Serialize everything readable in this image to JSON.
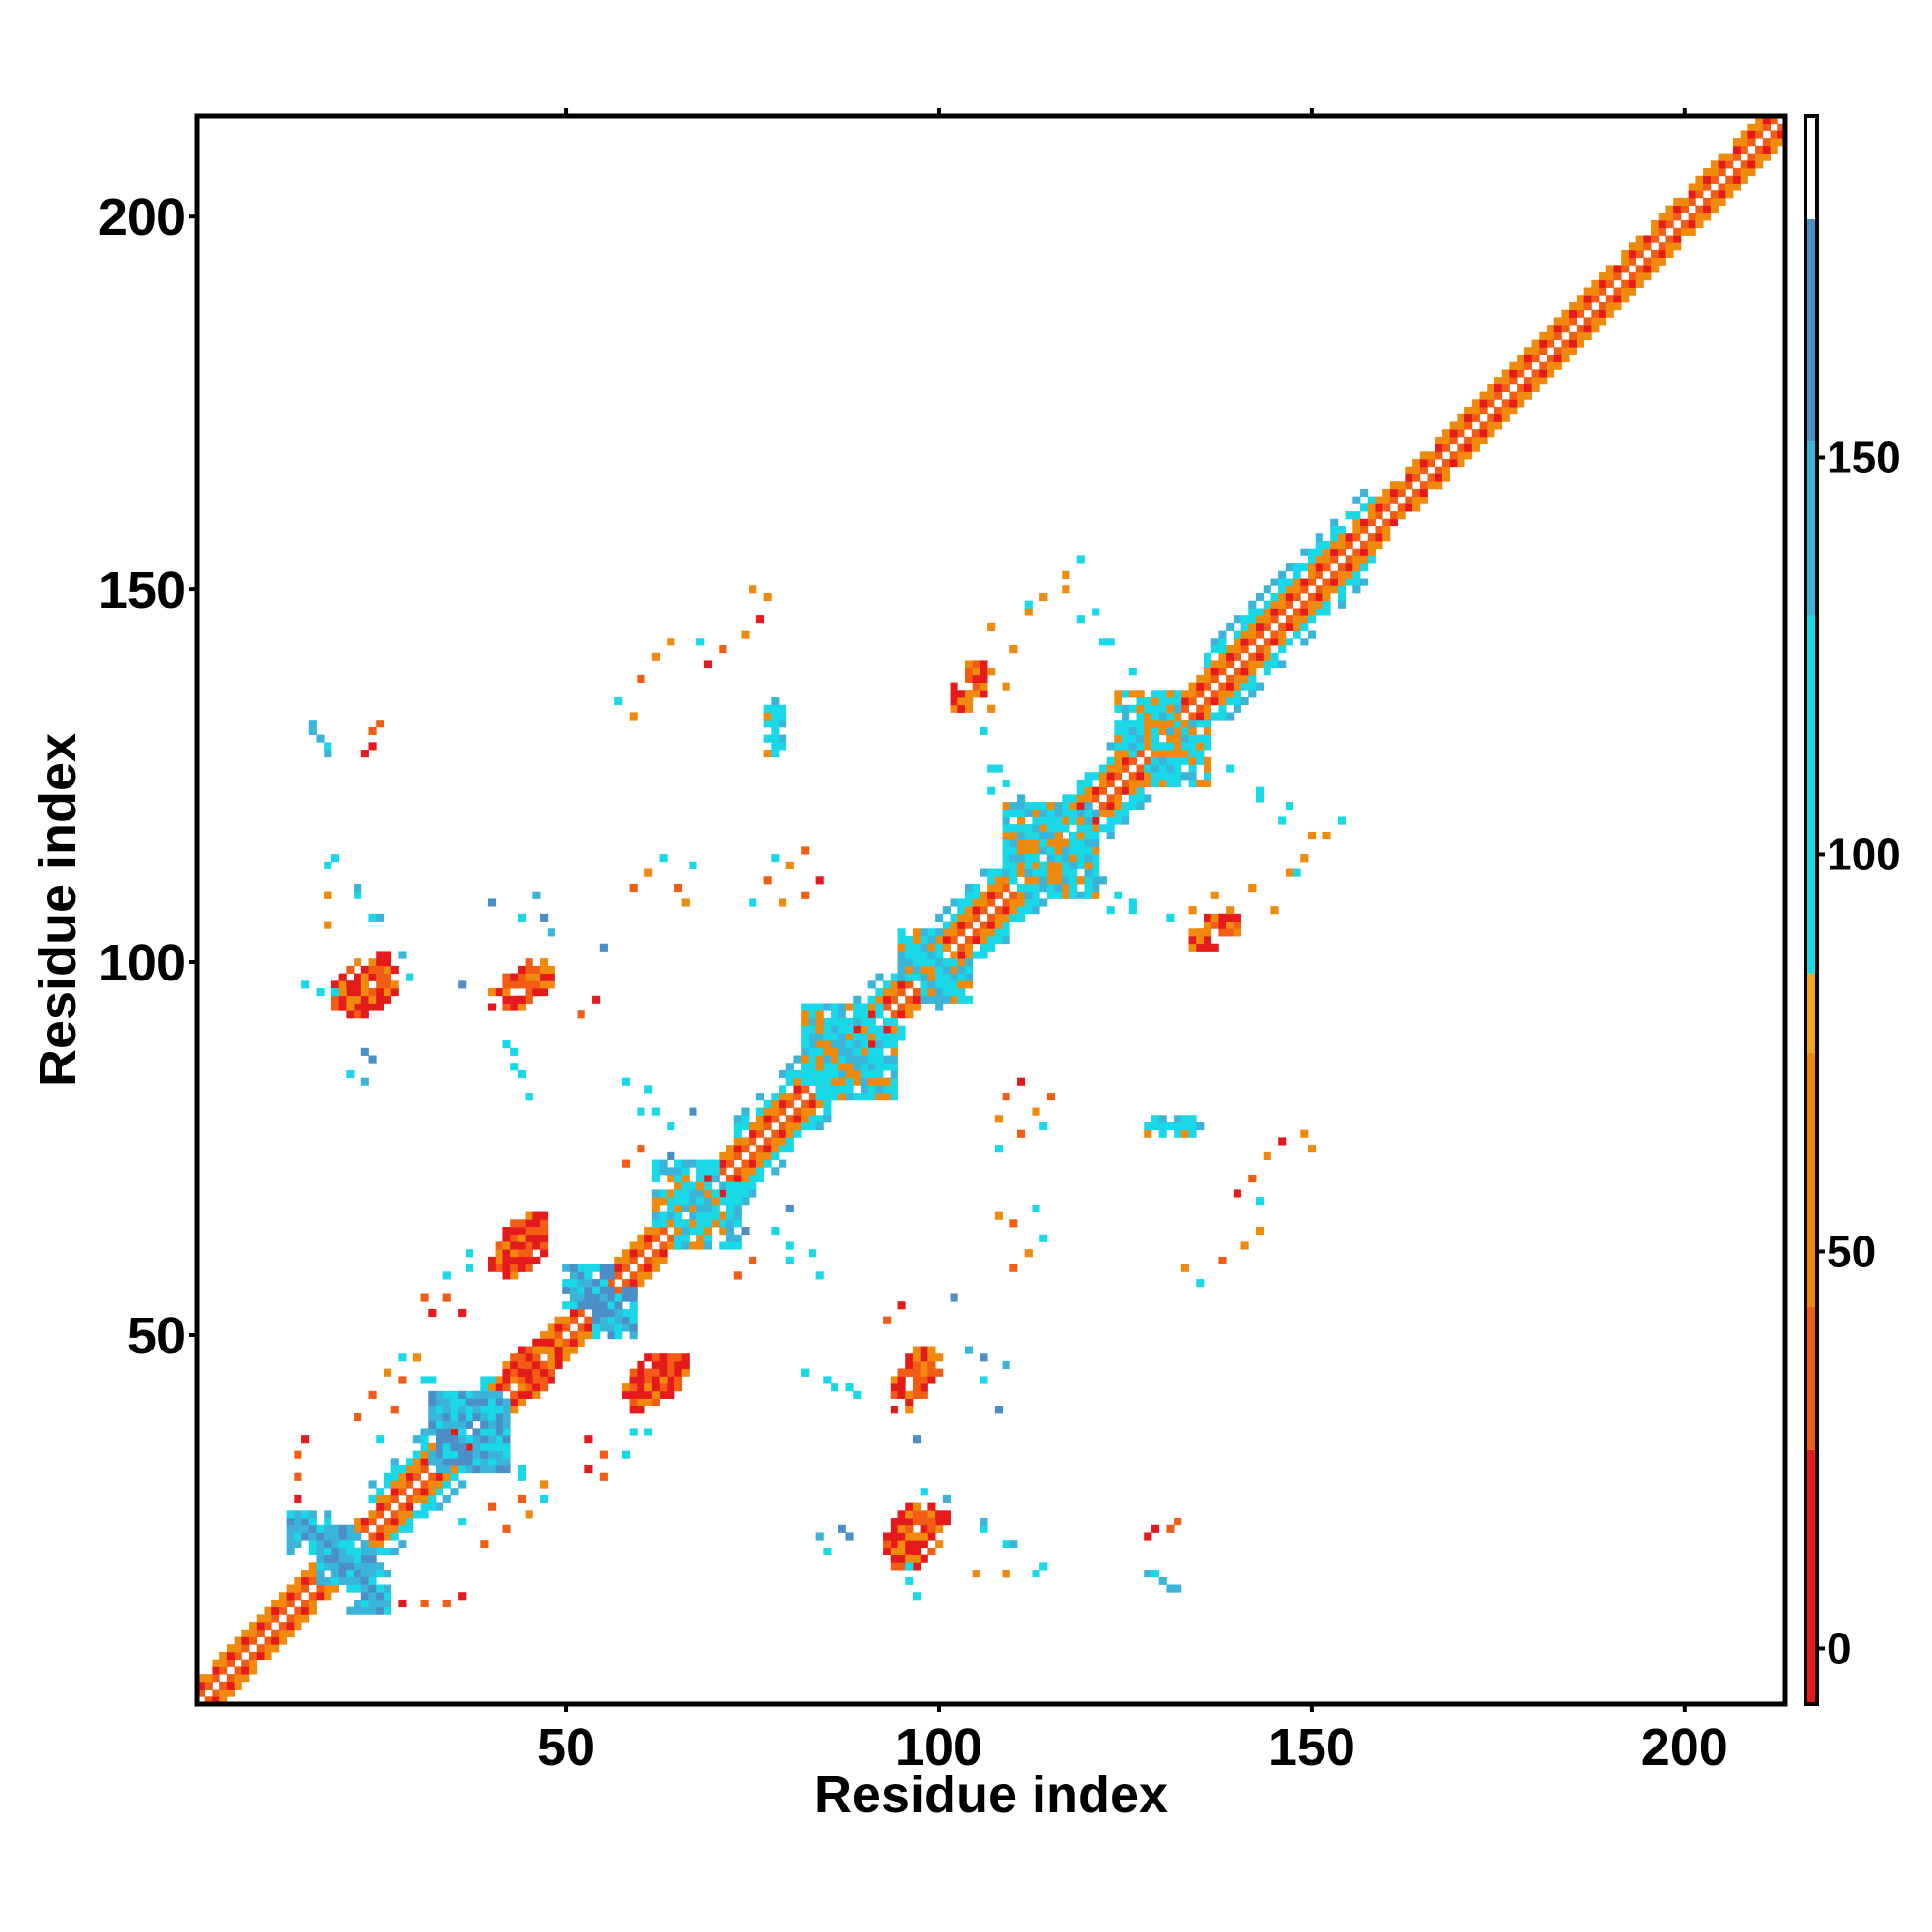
{
  "chart_data": {
    "type": "heatmap",
    "title": "",
    "xlabel": "Residue index",
    "ylabel": "Residue index",
    "xlim": [
      1,
      213
    ],
    "ylim": [
      1,
      213
    ],
    "x_ticks": [
      50,
      100,
      150,
      200
    ],
    "y_ticks": [
      50,
      100,
      150,
      200
    ],
    "x_tick_labels": [
      "50",
      "100",
      "150",
      "200"
    ],
    "y_tick_labels": [
      "50",
      "100",
      "150",
      "200"
    ],
    "grid": false,
    "legend": "none",
    "colorbar": {
      "ticks": [
        0,
        50,
        100,
        150
      ],
      "tick_labels": [
        "0",
        "50",
        "100",
        "150"
      ],
      "range": [
        -7,
        193
      ],
      "bands": [
        {
          "from": -7,
          "to": 25,
          "color": "#E41A1C"
        },
        {
          "from": 25,
          "to": 43,
          "color": "#F25C14"
        },
        {
          "from": 43,
          "to": 75,
          "color": "#F08A0C"
        },
        {
          "from": 75,
          "to": 85,
          "color": "#F5A623"
        },
        {
          "from": 85,
          "to": 130,
          "color": "#19D8E8"
        },
        {
          "from": 130,
          "to": 152,
          "color": "#3BB4DA"
        },
        {
          "from": 152,
          "to": 180,
          "color": "#4C8FC8"
        },
        {
          "from": 180,
          "to": 193,
          "color": "#FFFFFF"
        }
      ]
    },
    "colors": {
      "red": "#E41A1C",
      "orange_red": "#F25C14",
      "orange": "#F08A0C",
      "cyan": "#19D8E8",
      "sky": "#3BB4DA",
      "steel": "#4C8FC8"
    },
    "diagonal_band": {
      "from": 1,
      "to": 213,
      "color_sequence": [
        "orange",
        "orange_red",
        "red",
        "orange"
      ]
    },
    "helix_segments": [
      {
        "start": 24,
        "end": 40,
        "color": "cyan"
      },
      {
        "start": 72,
        "end": 95,
        "color": "cyan"
      },
      {
        "start": 100,
        "end": 132,
        "color": "cyan"
      },
      {
        "start": 136,
        "end": 158,
        "color": "cyan"
      },
      {
        "start": 159,
        "end": 213,
        "color": "orange"
      }
    ],
    "contact_patches": [
      {
        "x": [
          19,
          26
        ],
        "y": [
          94,
          101
        ],
        "color": "red"
      },
      {
        "x": [
          42,
          48
        ],
        "y": [
          94,
          100
        ],
        "color": "red"
      },
      {
        "x": [
          41,
          47
        ],
        "y": [
          59,
          66
        ],
        "color": "red"
      },
      {
        "x": [
          58,
          64
        ],
        "y": [
          40,
          47
        ],
        "color": "red"
      },
      {
        "x": [
          94,
          99
        ],
        "y": [
          40,
          47
        ],
        "color": "red"
      },
      {
        "x": [
          93,
          99
        ],
        "y": [
          20,
          27
        ],
        "color": "red"
      },
      {
        "x": [
          42,
          49
        ],
        "y": [
          44,
          49
        ],
        "color": "red"
      },
      {
        "x": [
          103,
          106
        ],
        "y": [
          134,
          138
        ],
        "color": "red"
      },
      {
        "x": [
          134,
          140
        ],
        "y": [
          102,
          106
        ],
        "color": "red"
      },
      {
        "x": [
          17,
          22
        ],
        "y": [
          17,
          24
        ],
        "color": "sky"
      },
      {
        "x": [
          21,
          26
        ],
        "y": [
          13,
          18
        ],
        "color": "sky"
      },
      {
        "x": [
          50,
          56
        ],
        "y": [
          54,
          59
        ],
        "color": "steel"
      },
      {
        "x": [
          95,
          101
        ],
        "y": [
          98,
          104
        ],
        "color": "cyan"
      },
      {
        "x": [
          109,
          120
        ],
        "y": [
          110,
          121
        ],
        "color": "cyan"
      },
      {
        "x": [
          124,
          132
        ],
        "y": [
          128,
          136
        ],
        "color": "cyan"
      },
      {
        "x": [
          32,
          41
        ],
        "y": [
          33,
          42
        ],
        "color": "sky"
      },
      {
        "x": [
          62,
          70
        ],
        "y": [
          65,
          73
        ],
        "color": "cyan"
      },
      {
        "x": [
          82,
          92
        ],
        "y": [
          84,
          94
        ],
        "color": "cyan"
      },
      {
        "x": [
          128,
          135
        ],
        "y": [
          77,
          79
        ],
        "color": "cyan"
      }
    ],
    "scattered_contacts": [
      {
        "x": 16,
        "y": 131,
        "color": "sky"
      },
      {
        "x": 17,
        "y": 130,
        "color": "sky"
      },
      {
        "x": 18,
        "y": 128,
        "color": "sky"
      },
      {
        "x": 24,
        "y": 131,
        "color": "orange_red"
      },
      {
        "x": 23,
        "y": 128,
        "color": "red"
      },
      {
        "x": 18,
        "y": 113,
        "color": "cyan"
      },
      {
        "x": 18,
        "y": 109,
        "color": "orange"
      },
      {
        "x": 22,
        "y": 109,
        "color": "cyan"
      },
      {
        "x": 24,
        "y": 106,
        "color": "cyan"
      },
      {
        "x": 24,
        "y": 87,
        "color": "steel"
      },
      {
        "x": 21,
        "y": 85,
        "color": "cyan"
      },
      {
        "x": 15,
        "y": 97,
        "color": "cyan"
      },
      {
        "x": 17,
        "y": 96,
        "color": "cyan"
      },
      {
        "x": 29,
        "y": 98,
        "color": "cyan"
      },
      {
        "x": 36,
        "y": 97,
        "color": "steel"
      },
      {
        "x": 40,
        "y": 108,
        "color": "steel"
      },
      {
        "x": 44,
        "y": 106,
        "color": "cyan"
      },
      {
        "x": 42,
        "y": 89,
        "color": "cyan"
      },
      {
        "x": 43,
        "y": 86,
        "color": "cyan"
      },
      {
        "x": 45,
        "y": 82,
        "color": "cyan"
      },
      {
        "x": 57,
        "y": 135,
        "color": "cyan"
      },
      {
        "x": 59,
        "y": 133,
        "color": "orange"
      },
      {
        "x": 60,
        "y": 138,
        "color": "orange_red"
      },
      {
        "x": 62,
        "y": 141,
        "color": "orange"
      },
      {
        "x": 64,
        "y": 143,
        "color": "orange"
      },
      {
        "x": 59,
        "y": 110,
        "color": "orange_red"
      },
      {
        "x": 61,
        "y": 112,
        "color": "orange"
      },
      {
        "x": 63,
        "y": 114,
        "color": "cyan"
      },
      {
        "x": 65,
        "y": 110,
        "color": "orange_red"
      },
      {
        "x": 67,
        "y": 113,
        "color": "cyan"
      },
      {
        "x": 66,
        "y": 108,
        "color": "orange"
      },
      {
        "x": 52,
        "y": 93,
        "color": "orange_red"
      },
      {
        "x": 54,
        "y": 95,
        "color": "red"
      },
      {
        "x": 55,
        "y": 102,
        "color": "steel"
      },
      {
        "x": 58,
        "y": 84,
        "color": "cyan"
      },
      {
        "x": 60,
        "y": 80,
        "color": "cyan"
      },
      {
        "x": 64,
        "y": 74,
        "color": "steel"
      },
      {
        "x": 78,
        "y": 64,
        "color": "cyan"
      },
      {
        "x": 80,
        "y": 62,
        "color": "cyan"
      },
      {
        "x": 83,
        "y": 61,
        "color": "cyan"
      },
      {
        "x": 73,
        "y": 58,
        "color": "orange_red"
      },
      {
        "x": 75,
        "y": 60,
        "color": "orange_red"
      },
      {
        "x": 80,
        "y": 67,
        "color": "steel"
      },
      {
        "x": 82,
        "y": 45,
        "color": "cyan"
      },
      {
        "x": 85,
        "y": 44,
        "color": "cyan"
      },
      {
        "x": 88,
        "y": 43,
        "color": "cyan"
      },
      {
        "x": 104,
        "y": 48,
        "color": "sky"
      },
      {
        "x": 106,
        "y": 47,
        "color": "steel"
      },
      {
        "x": 109,
        "y": 46,
        "color": "sky"
      },
      {
        "x": 101,
        "y": 28,
        "color": "sky"
      },
      {
        "x": 106,
        "y": 25,
        "color": "sky"
      },
      {
        "x": 110,
        "y": 22,
        "color": "sky"
      },
      {
        "x": 84,
        "y": 23,
        "color": "sky"
      },
      {
        "x": 88,
        "y": 23,
        "color": "steel"
      },
      {
        "x": 96,
        "y": 19,
        "color": "cyan"
      },
      {
        "x": 105,
        "y": 18,
        "color": "orange"
      },
      {
        "x": 109,
        "y": 18,
        "color": "orange"
      },
      {
        "x": 114,
        "y": 19,
        "color": "cyan"
      },
      {
        "x": 129,
        "y": 24,
        "color": "red"
      },
      {
        "x": 132,
        "y": 25,
        "color": "orange_red"
      },
      {
        "x": 129,
        "y": 18,
        "color": "cyan"
      },
      {
        "x": 132,
        "y": 16,
        "color": "sky"
      },
      {
        "x": 28,
        "y": 44,
        "color": "orange_red"
      },
      {
        "x": 30,
        "y": 47,
        "color": "orange"
      },
      {
        "x": 32,
        "y": 44,
        "color": "cyan"
      },
      {
        "x": 27,
        "y": 40,
        "color": "orange_red"
      },
      {
        "x": 15,
        "y": 36,
        "color": "red"
      },
      {
        "x": 14,
        "y": 28,
        "color": "red"
      },
      {
        "x": 36,
        "y": 25,
        "color": "cyan"
      },
      {
        "x": 39,
        "y": 22,
        "color": "orange_red"
      },
      {
        "x": 42,
        "y": 24,
        "color": "orange_red"
      },
      {
        "x": 45,
        "y": 26,
        "color": "orange"
      },
      {
        "x": 47,
        "y": 28,
        "color": "cyan"
      },
      {
        "x": 44,
        "y": 31,
        "color": "cyan"
      },
      {
        "x": 53,
        "y": 32,
        "color": "red"
      },
      {
        "x": 55,
        "y": 31,
        "color": "orange_red"
      },
      {
        "x": 59,
        "y": 37,
        "color": "cyan"
      },
      {
        "x": 34,
        "y": 55,
        "color": "orange_red"
      },
      {
        "x": 36,
        "y": 53,
        "color": "red"
      },
      {
        "x": 34,
        "y": 58,
        "color": "cyan"
      },
      {
        "x": 37,
        "y": 61,
        "color": "cyan"
      },
      {
        "x": 31,
        "y": 14,
        "color": "orange_red"
      },
      {
        "x": 34,
        "y": 14,
        "color": "orange_red"
      },
      {
        "x": 104,
        "y": 136,
        "color": "orange"
      },
      {
        "x": 107,
        "y": 139,
        "color": "orange"
      },
      {
        "x": 110,
        "y": 142,
        "color": "orange"
      },
      {
        "x": 112,
        "y": 147,
        "color": "orange"
      },
      {
        "x": 114,
        "y": 149,
        "color": "cyan"
      },
      {
        "x": 117,
        "y": 150,
        "color": "orange"
      },
      {
        "x": 121,
        "y": 147,
        "color": "cyan"
      },
      {
        "x": 123,
        "y": 143,
        "color": "cyan"
      },
      {
        "x": 126,
        "y": 139,
        "color": "cyan"
      },
      {
        "x": 107,
        "y": 126,
        "color": "cyan"
      },
      {
        "x": 109,
        "y": 124,
        "color": "cyan"
      },
      {
        "x": 111,
        "y": 122,
        "color": "sky"
      },
      {
        "x": 120,
        "y": 110,
        "color": "cyan"
      },
      {
        "x": 123,
        "y": 107,
        "color": "cyan"
      },
      {
        "x": 126,
        "y": 108,
        "color": "cyan"
      },
      {
        "x": 131,
        "y": 106,
        "color": "cyan"
      },
      {
        "x": 134,
        "y": 107,
        "color": "orange"
      },
      {
        "x": 137,
        "y": 109,
        "color": "orange"
      },
      {
        "x": 142,
        "y": 110,
        "color": "orange"
      },
      {
        "x": 145,
        "y": 107,
        "color": "orange"
      },
      {
        "x": 148,
        "y": 112,
        "color": "cyan"
      },
      {
        "x": 149,
        "y": 114,
        "color": "orange"
      },
      {
        "x": 152,
        "y": 117,
        "color": "orange"
      },
      {
        "x": 154,
        "y": 119,
        "color": "cyan"
      },
      {
        "x": 146,
        "y": 119,
        "color": "cyan"
      },
      {
        "x": 143,
        "y": 122,
        "color": "cyan"
      },
      {
        "x": 109,
        "y": 82,
        "color": "orange_red"
      },
      {
        "x": 111,
        "y": 84,
        "color": "red"
      },
      {
        "x": 113,
        "y": 80,
        "color": "orange"
      },
      {
        "x": 108,
        "y": 79,
        "color": "orange"
      },
      {
        "x": 111,
        "y": 77,
        "color": "orange_red"
      },
      {
        "x": 115,
        "y": 82,
        "color": "orange_red"
      },
      {
        "x": 114,
        "y": 78,
        "color": "cyan"
      },
      {
        "x": 108,
        "y": 75,
        "color": "cyan"
      },
      {
        "x": 140,
        "y": 69,
        "color": "red"
      },
      {
        "x": 142,
        "y": 71,
        "color": "orange_red"
      },
      {
        "x": 144,
        "y": 74,
        "color": "orange"
      },
      {
        "x": 146,
        "y": 76,
        "color": "red"
      },
      {
        "x": 149,
        "y": 77,
        "color": "orange"
      },
      {
        "x": 150,
        "y": 75,
        "color": "orange"
      },
      {
        "x": 143,
        "y": 68,
        "color": "cyan"
      }
    ]
  }
}
